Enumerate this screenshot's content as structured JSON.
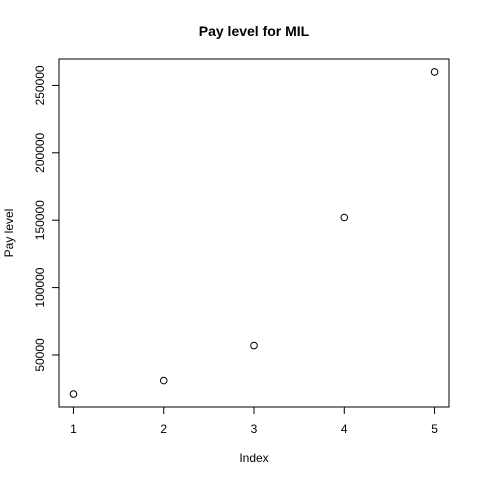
{
  "chart_data": {
    "type": "scatter",
    "title": "Pay level for  MIL",
    "xlabel": "Index",
    "ylabel": "Pay level",
    "x": [
      1,
      2,
      3,
      4,
      5
    ],
    "y": [
      21000,
      31000,
      57000,
      152000,
      260000
    ],
    "xlim": [
      0.84,
      5.16
    ],
    "ylim": [
      11400,
      269600
    ],
    "xticks": [
      1,
      2,
      3,
      4,
      5
    ],
    "yticks": [
      50000,
      100000,
      150000,
      200000,
      250000
    ],
    "xtick_labels": [
      "1",
      "2",
      "3",
      "4",
      "5"
    ],
    "ytick_labels": [
      "50000",
      "100000",
      "150000",
      "200000",
      "250000"
    ],
    "marker": "open-circle",
    "grid": false,
    "legend": "none"
  }
}
